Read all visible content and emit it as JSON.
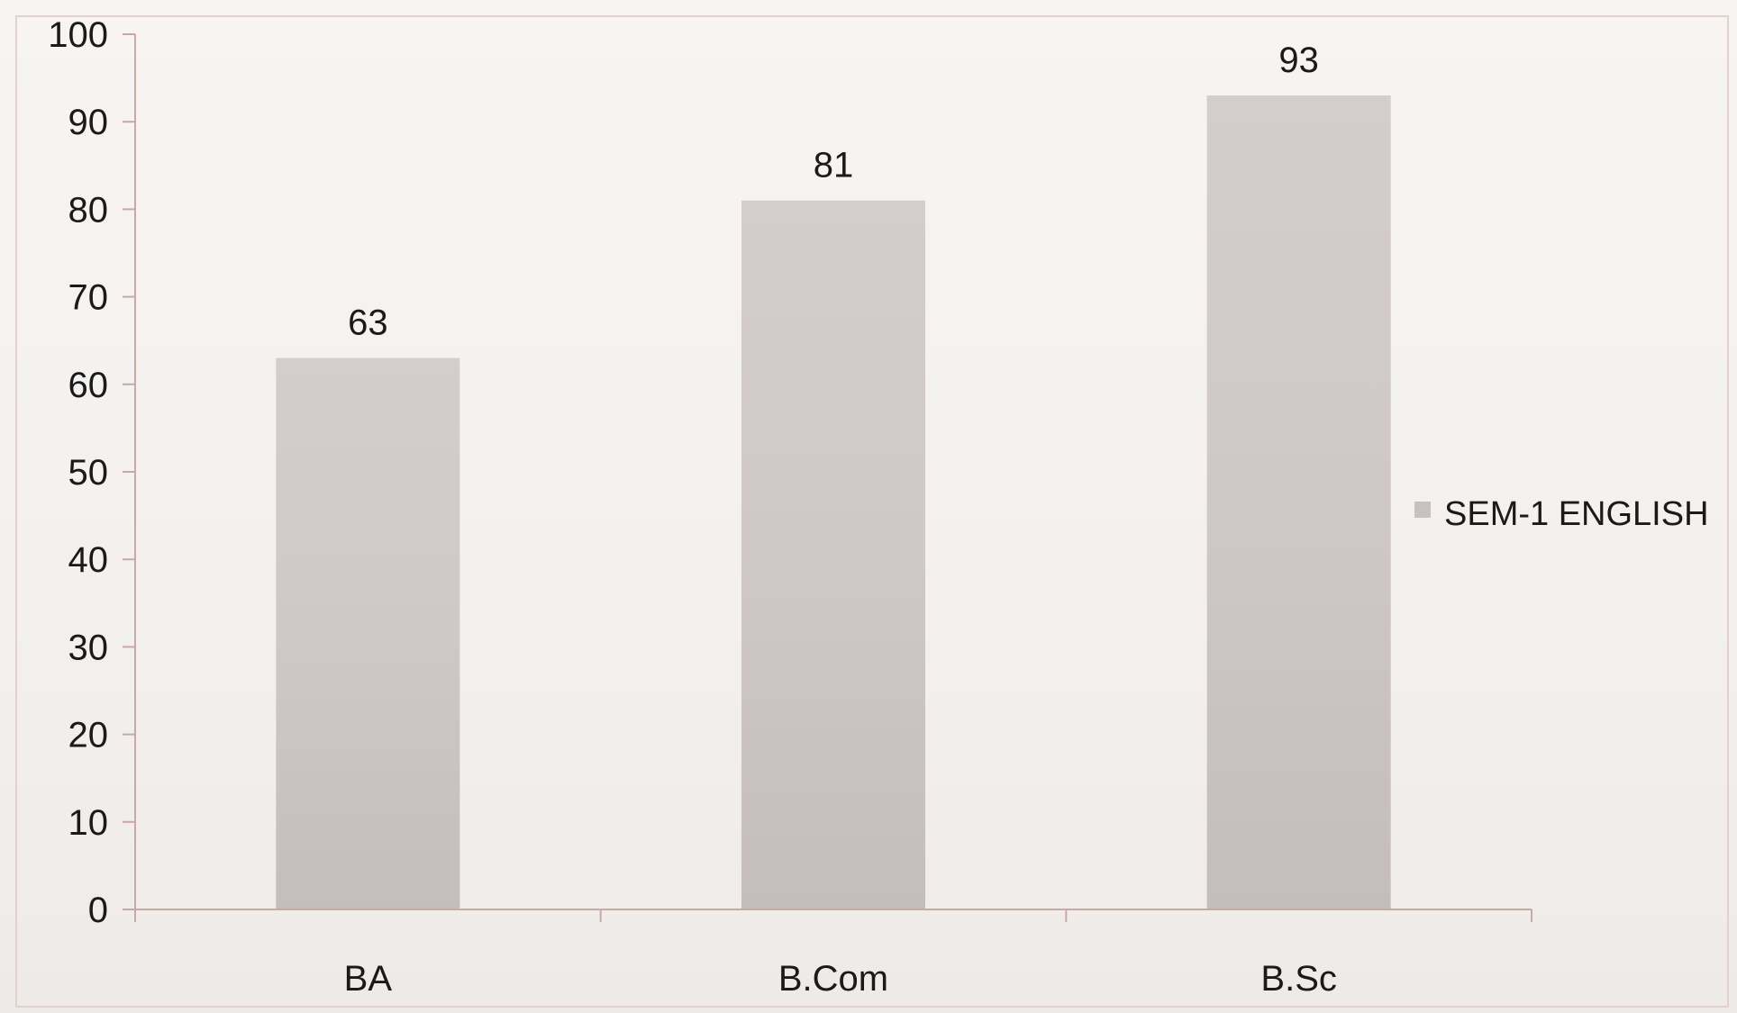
{
  "chart_data": {
    "type": "bar",
    "categories": [
      "BA",
      "B.Com",
      "B.Sc"
    ],
    "series": [
      {
        "name": "SEM-1 ENGLISH",
        "values": [
          63,
          81,
          93
        ]
      }
    ],
    "data_labels": [
      "63",
      "81",
      "93"
    ],
    "y_ticks": [
      "0",
      "10",
      "20",
      "30",
      "40",
      "50",
      "60",
      "70",
      "80",
      "90",
      "100"
    ],
    "ylim": [
      0,
      100
    ],
    "title": "",
    "xlabel": "",
    "ylabel": "",
    "grid": false,
    "legend_position": "right",
    "colors": {
      "bar": "#cdc6c4",
      "axis": "#c9a9a4",
      "border": "#d9c2bf"
    }
  }
}
